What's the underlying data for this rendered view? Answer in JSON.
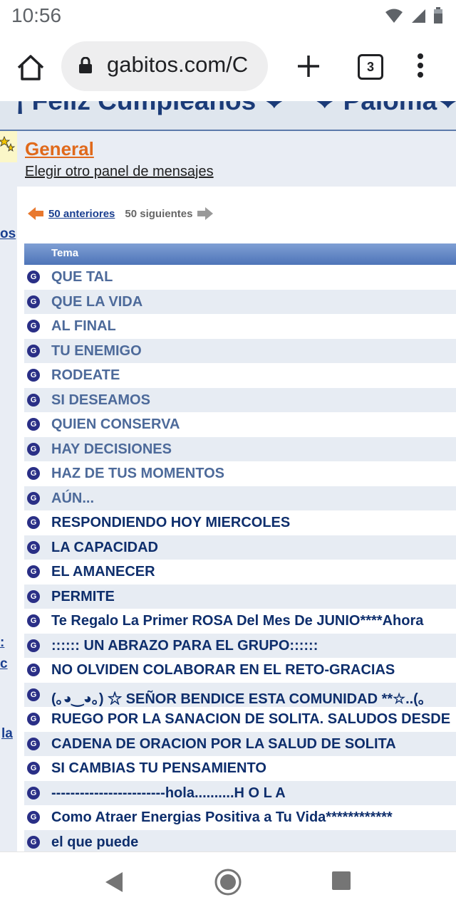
{
  "status_bar": {
    "time": "10:56"
  },
  "browser": {
    "url": "gabitos.com/C",
    "tab_count": "3"
  },
  "banner": {
    "text": "¡ Feliz Cumpleaños ❤°° ❤ Paloma❤°°"
  },
  "left_column": {
    "links": [
      "os",
      ":",
      "c",
      "la"
    ]
  },
  "panel": {
    "title": "General",
    "change_panel": "Elegir otro panel de mensajes"
  },
  "pager": {
    "prev_label": "50 anteriores",
    "next_label": "50 siguientes"
  },
  "table": {
    "header": "Tema",
    "rows": [
      {
        "title": "QUE TAL",
        "state": "read"
      },
      {
        "title": "QUE LA VIDA",
        "state": "read"
      },
      {
        "title": "AL FINAL",
        "state": "read"
      },
      {
        "title": "TU ENEMIGO",
        "state": "read"
      },
      {
        "title": "RODEATE",
        "state": "read"
      },
      {
        "title": "SI DESEAMOS",
        "state": "read"
      },
      {
        "title": "QUIEN CONSERVA",
        "state": "read"
      },
      {
        "title": "HAY DECISIONES",
        "state": "read"
      },
      {
        "title": "HAZ DE TUS MOMENTOS",
        "state": "read"
      },
      {
        "title": "AÚN...",
        "state": "read"
      },
      {
        "title": "RESPONDIENDO HOY MIERCOLES",
        "state": "unread"
      },
      {
        "title": "LA CAPACIDAD",
        "state": "unread"
      },
      {
        "title": "EL AMANECER",
        "state": "unread"
      },
      {
        "title": "PERMITE",
        "state": "unread"
      },
      {
        "title": "Te Regalo La Primer ROSA Del Mes De JUNIO****Ahora",
        "state": "unread"
      },
      {
        "title": ":::::: UN ABRAZO PARA EL GRUPO::::::",
        "state": "unread"
      },
      {
        "title": "NO OLVIDEN COLABORAR EN EL RETO-GRACIAS",
        "state": "unread"
      },
      {
        "title": "(｡◕‿◕｡) ☆ SEÑOR BENDICE ESTA COMUNIDAD **☆..(｡",
        "state": "unread"
      },
      {
        "title": "RUEGO POR LA SANACION DE SOLITA. SALUDOS DESDE",
        "state": "unread"
      },
      {
        "title": "CADENA DE ORACION POR LA SALUD DE SOLITA",
        "state": "unread"
      },
      {
        "title": "SI CAMBIAS TU PENSAMIENTO",
        "state": "unread"
      },
      {
        "title": "------------------------hola..........H O L A",
        "state": "unread"
      },
      {
        "title": "Como Atraer Energias Positiva a Tu Vida************",
        "state": "unread"
      },
      {
        "title": "el que puede",
        "state": "unread"
      }
    ]
  }
}
